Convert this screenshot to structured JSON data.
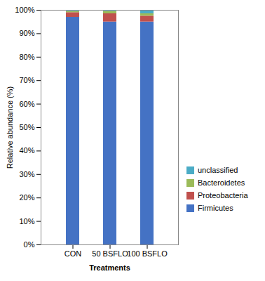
{
  "chart_data": {
    "type": "bar",
    "stacked": true,
    "categories": [
      "CON",
      "50 BSFLO",
      "100 BSFLO"
    ],
    "series": [
      {
        "name": "Firmicutes",
        "color": "#4472C4",
        "values": [
          97.0,
          95.0,
          95.0
        ]
      },
      {
        "name": "Proteobacteria",
        "color": "#C0504D",
        "values": [
          2.0,
          3.5,
          2.5
        ]
      },
      {
        "name": "Bacteroidetes",
        "color": "#9BBB59",
        "values": [
          0.5,
          1.0,
          1.0
        ]
      },
      {
        "name": "unclassified",
        "color": "#4BACC6",
        "values": [
          0.5,
          0.5,
          1.5
        ]
      }
    ],
    "xlabel": "Treatments",
    "ylabel": "Relative abundance (%)",
    "ylim": [
      0,
      100
    ],
    "yticks": [
      {
        "value": 0,
        "label": "0%"
      },
      {
        "value": 10,
        "label": "10%"
      },
      {
        "value": 20,
        "label": "20%"
      },
      {
        "value": 30,
        "label": "30%"
      },
      {
        "value": 40,
        "label": "40%"
      },
      {
        "value": 50,
        "label": "50%"
      },
      {
        "value": 60,
        "label": "60%"
      },
      {
        "value": 70,
        "label": "70%"
      },
      {
        "value": 80,
        "label": "80%"
      },
      {
        "value": 90,
        "label": "90%"
      },
      {
        "value": 100,
        "label": "100%"
      }
    ],
    "legend": "lower right",
    "grid": false
  }
}
